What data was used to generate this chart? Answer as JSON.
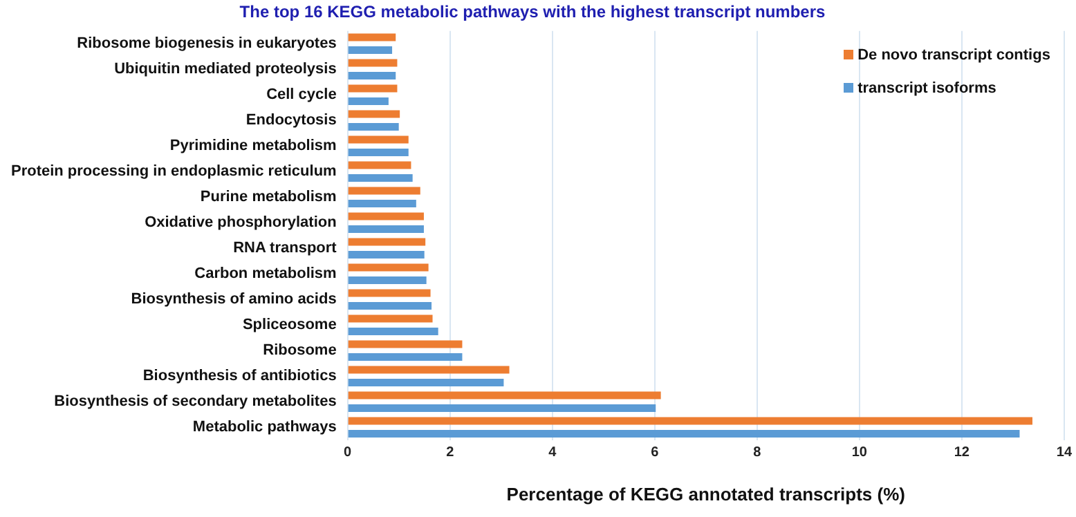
{
  "chart_data": {
    "type": "bar",
    "orientation": "horizontal",
    "title": "The top 16 KEGG metabolic pathways with the highest transcript numbers",
    "xlabel": "Percentage of KEGG annotated transcripts (%)",
    "categories": [
      "Ribosome biogenesis in eukaryotes",
      "Ubiquitin mediated proteolysis",
      "Cell cycle",
      "Endocytosis",
      "Pyrimidine metabolism",
      "Protein processing in endoplasmic reticulum",
      "Purine metabolism",
      "Oxidative phosphorylation",
      "RNA transport",
      "Carbon metabolism",
      "Biosynthesis of amino acids",
      "Spliceosome",
      "Ribosome",
      "Biosynthesis of antibiotics",
      "Biosynthesis of secondary metabolites",
      "Metabolic pathways"
    ],
    "series": [
      {
        "name": "De novo transcript contigs",
        "color": "#ed7d31",
        "values": [
          0.94,
          0.97,
          0.97,
          1.02,
          1.19,
          1.24,
          1.42,
          1.49,
          1.52,
          1.58,
          1.62,
          1.66,
          2.24,
          3.16,
          6.12,
          13.38
        ]
      },
      {
        "name": "transcript isoforms",
        "color": "#5b9bd5",
        "values": [
          0.87,
          0.94,
          0.8,
          1.0,
          1.19,
          1.27,
          1.34,
          1.49,
          1.5,
          1.54,
          1.64,
          1.77,
          2.24,
          3.05,
          6.02,
          13.13
        ]
      }
    ],
    "xlim": [
      0,
      14
    ],
    "xticks": [
      0,
      2,
      4,
      6,
      8,
      10,
      12,
      14
    ],
    "grid": "x",
    "legend": "top right"
  }
}
